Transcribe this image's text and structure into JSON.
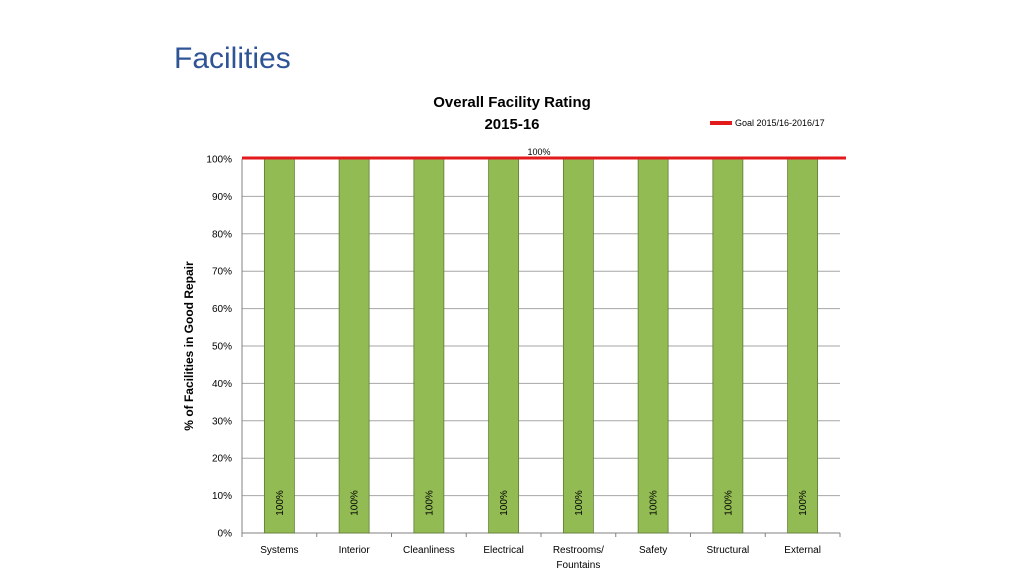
{
  "slide": {
    "title": "Facilities"
  },
  "chart_data": {
    "type": "bar",
    "title": "Overall Facility Rating",
    "subtitle": "2015-16",
    "categories": [
      "Systems",
      "Interior",
      "Cleanliness",
      "Electrical",
      "Restrooms/ Fountains",
      "Safety",
      "Structural",
      "External"
    ],
    "series": [
      {
        "values": [
          100,
          100,
          100,
          100,
          100,
          100,
          100,
          100
        ],
        "data_labels": [
          "100%",
          "100%",
          "100%",
          "100%",
          "100%",
          "100%",
          "100%",
          "100%"
        ]
      }
    ],
    "goal": {
      "name": "Goal 2015/16-2016/17",
      "value": 100,
      "label": "100%"
    },
    "ylabel": "% of Facilities in Good Repair",
    "xlabel": "",
    "ylim": [
      0,
      100
    ],
    "yticks": [
      "0%",
      "10%",
      "20%",
      "30%",
      "40%",
      "50%",
      "60%",
      "70%",
      "80%",
      "90%",
      "100%"
    ],
    "grid": true,
    "legend_position": "top-right",
    "colors": {
      "bar": "#92BB53",
      "bar_border": "#5F7A34",
      "goal": "#E31A1C",
      "grid": "#A6A6A6",
      "title": "#2F5496"
    }
  }
}
